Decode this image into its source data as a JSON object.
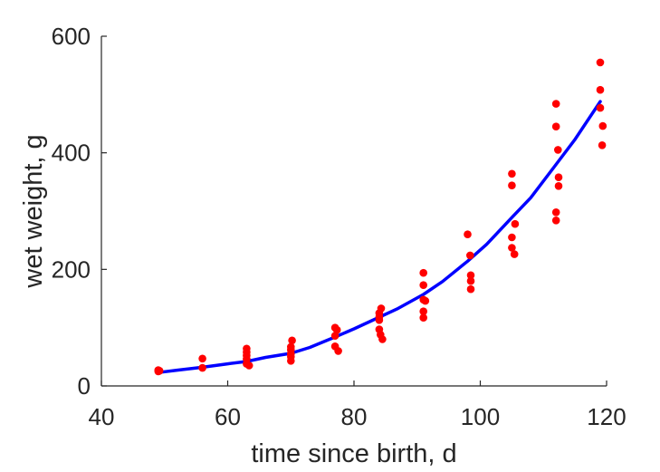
{
  "chart_data": {
    "type": "scatter",
    "xlabel": "time since birth, d",
    "ylabel": "wet weight, g",
    "xlim": [
      40,
      120
    ],
    "ylim": [
      0,
      600
    ],
    "xticks": [
      40,
      60,
      80,
      100,
      120
    ],
    "yticks": [
      0,
      200,
      400,
      600
    ],
    "grid": false,
    "colors": {
      "points": "#ff0000",
      "curve": "#0000ff",
      "axis": "#262626"
    },
    "series": [
      {
        "type": "scatter",
        "points": [
          [
            49,
            25
          ],
          [
            49,
            27
          ],
          [
            49.2,
            26
          ],
          [
            56,
            31
          ],
          [
            56,
            47
          ],
          [
            63,
            38
          ],
          [
            63,
            46
          ],
          [
            63,
            52
          ],
          [
            63,
            58
          ],
          [
            63,
            64
          ],
          [
            63.4,
            35
          ],
          [
            70,
            43
          ],
          [
            70,
            50
          ],
          [
            70,
            55
          ],
          [
            70,
            62
          ],
          [
            70,
            67
          ],
          [
            70.2,
            78
          ],
          [
            77,
            68
          ],
          [
            77,
            86
          ],
          [
            77,
            100
          ],
          [
            77.3,
            96
          ],
          [
            77.5,
            60
          ],
          [
            84,
            97
          ],
          [
            84,
            113
          ],
          [
            84,
            118
          ],
          [
            84,
            125
          ],
          [
            84.2,
            88
          ],
          [
            84.3,
            133
          ],
          [
            84.5,
            80
          ],
          [
            91,
            117
          ],
          [
            91,
            128
          ],
          [
            91,
            148
          ],
          [
            91,
            173
          ],
          [
            91,
            194
          ],
          [
            91.3,
            146
          ],
          [
            98,
            260
          ],
          [
            98.4,
            224
          ],
          [
            98.5,
            166
          ],
          [
            98.5,
            180
          ],
          [
            98.5,
            190
          ],
          [
            105,
            237
          ],
          [
            105,
            255
          ],
          [
            105,
            344
          ],
          [
            105,
            364
          ],
          [
            105.4,
            226
          ],
          [
            105.5,
            278
          ],
          [
            112,
            284
          ],
          [
            112,
            298
          ],
          [
            112,
            445
          ],
          [
            112,
            484
          ],
          [
            112.3,
            405
          ],
          [
            112.4,
            343
          ],
          [
            112.4,
            358
          ],
          [
            119,
            477
          ],
          [
            119,
            508
          ],
          [
            119,
            555
          ],
          [
            119.3,
            413
          ],
          [
            119.4,
            446
          ]
        ]
      },
      {
        "type": "line",
        "points": [
          [
            49,
            23
          ],
          [
            52,
            27
          ],
          [
            56,
            32
          ],
          [
            60,
            38
          ],
          [
            63,
            42
          ],
          [
            66,
            49
          ],
          [
            70,
            56
          ],
          [
            73,
            66
          ],
          [
            77,
            84
          ],
          [
            80,
            98
          ],
          [
            84,
            118
          ],
          [
            87,
            133
          ],
          [
            91,
            157
          ],
          [
            94,
            179
          ],
          [
            98,
            214
          ],
          [
            101,
            243
          ],
          [
            105,
            289
          ],
          [
            108,
            323
          ],
          [
            112,
            380
          ],
          [
            115,
            423
          ],
          [
            119,
            488
          ]
        ]
      }
    ]
  }
}
